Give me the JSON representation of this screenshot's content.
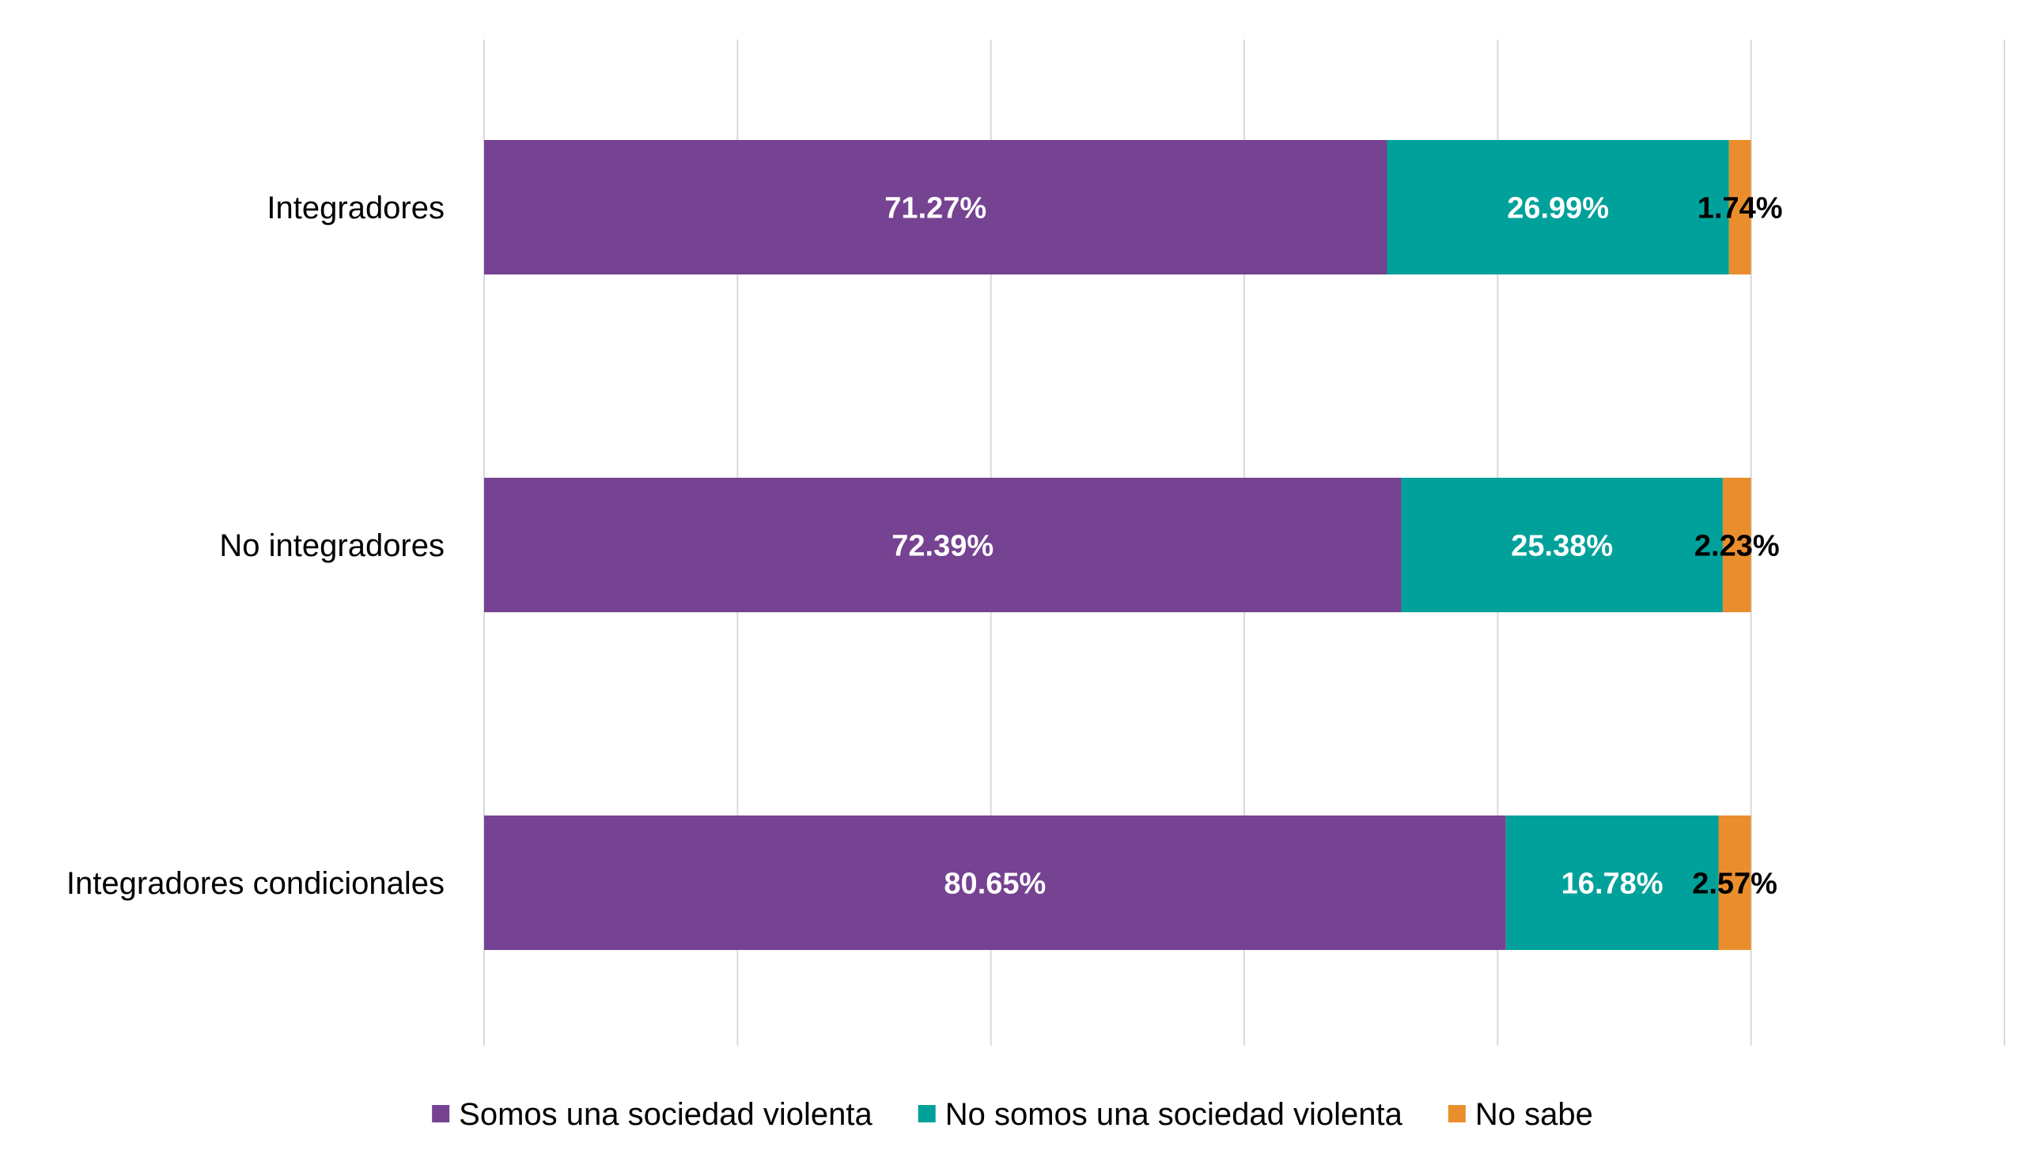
{
  "chart_data": {
    "type": "bar",
    "orientation": "horizontal",
    "stacked": true,
    "categories": [
      "Integradores",
      "No integradores",
      "Integradores condicionales"
    ],
    "series": [
      {
        "name": "Somos una sociedad violenta",
        "color": "#764292",
        "values": [
          71.27,
          72.39,
          80.65
        ],
        "labels": [
          "71.27%",
          "72.39%",
          "80.65%"
        ]
      },
      {
        "name": "No somos una sociedad violenta",
        "color": "#00A19A",
        "values": [
          26.99,
          25.38,
          16.78
        ],
        "labels": [
          "26.99%",
          "25.38%",
          "16.78%"
        ]
      },
      {
        "name": "No sabe",
        "color": "#EA8E2D",
        "values": [
          1.74,
          2.23,
          2.57
        ],
        "labels": [
          "1.74%",
          "2.23%",
          "2.57%"
        ]
      }
    ],
    "xlim": [
      0,
      120
    ],
    "gridline_step": 20,
    "grid": true,
    "legend_position": "bottom",
    "title": "",
    "xlabel": "",
    "ylabel": ""
  }
}
